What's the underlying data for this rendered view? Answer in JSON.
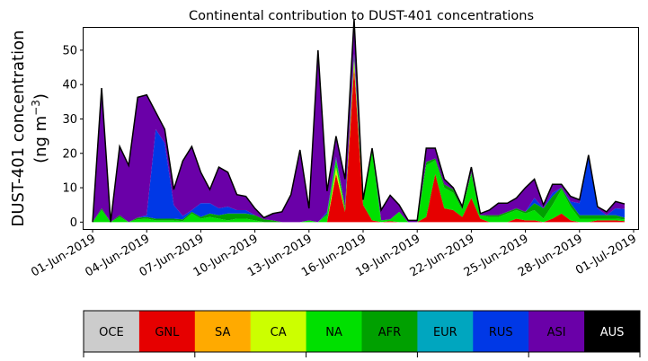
{
  "chart_data": {
    "type": "area",
    "title": "Continental contribution to DUST-401 concentrations",
    "ylabel_line1": "DUST-401 concentration",
    "ylabel_line2_prefix": "(ng m",
    "ylabel_line2_sup": "−3",
    "ylabel_line2_suffix": ")",
    "xlabel": "",
    "stacked": true,
    "ylim": [
      -2,
      56.5
    ],
    "yticks": [
      0,
      10,
      20,
      30,
      40,
      50
    ],
    "xlim": [
      "2019-05-31T12:00",
      "2019-07-01T06:00"
    ],
    "xtick_dates": [
      "2019-06-01",
      "2019-06-04",
      "2019-06-07",
      "2019-06-10",
      "2019-06-13",
      "2019-06-16",
      "2019-06-19",
      "2019-06-22",
      "2019-06-25",
      "2019-06-28",
      "2019-07-01"
    ],
    "xtick_labels": [
      "01-Jun-2019",
      "04-Jun-2019",
      "07-Jun-2019",
      "10-Jun-2019",
      "13-Jun-2019",
      "16-Jun-2019",
      "19-Jun-2019",
      "22-Jun-2019",
      "25-Jun-2019",
      "28-Jun-2019",
      "01-Jul-2019"
    ],
    "x": [
      "2019-06-01T00:00",
      "2019-06-01T12:00",
      "2019-06-02T00:00",
      "2019-06-02T12:00",
      "2019-06-03T00:00",
      "2019-06-03T12:00",
      "2019-06-04T00:00",
      "2019-06-04T12:00",
      "2019-06-05T00:00",
      "2019-06-05T12:00",
      "2019-06-06T00:00",
      "2019-06-06T12:00",
      "2019-06-07T00:00",
      "2019-06-07T12:00",
      "2019-06-08T00:00",
      "2019-06-08T12:00",
      "2019-06-09T00:00",
      "2019-06-09T12:00",
      "2019-06-10T00:00",
      "2019-06-10T12:00",
      "2019-06-11T00:00",
      "2019-06-11T12:00",
      "2019-06-12T00:00",
      "2019-06-12T12:00",
      "2019-06-13T00:00",
      "2019-06-13T12:00",
      "2019-06-14T00:00",
      "2019-06-14T12:00",
      "2019-06-15T00:00",
      "2019-06-15T12:00",
      "2019-06-16T00:00",
      "2019-06-16T12:00",
      "2019-06-17T00:00",
      "2019-06-17T12:00",
      "2019-06-18T00:00",
      "2019-06-18T12:00",
      "2019-06-19T00:00",
      "2019-06-19T12:00",
      "2019-06-20T00:00",
      "2019-06-20T12:00",
      "2019-06-21T00:00",
      "2019-06-21T12:00",
      "2019-06-22T00:00",
      "2019-06-22T12:00",
      "2019-06-23T00:00",
      "2019-06-23T12:00",
      "2019-06-24T00:00",
      "2019-06-24T12:00",
      "2019-06-25T00:00",
      "2019-06-25T12:00",
      "2019-06-26T00:00",
      "2019-06-26T12:00",
      "2019-06-27T00:00",
      "2019-06-27T12:00",
      "2019-06-28T00:00",
      "2019-06-28T12:00",
      "2019-06-29T00:00",
      "2019-06-29T12:00",
      "2019-06-30T00:00",
      "2019-06-30T12:00"
    ],
    "series": [
      {
        "name": "OCE",
        "color": "#cccccc",
        "values": [
          0,
          0,
          0,
          0,
          0,
          0,
          0,
          0,
          0,
          0,
          0,
          0,
          0,
          0,
          0,
          0,
          0,
          0,
          0,
          0,
          0,
          0,
          0,
          0,
          0,
          0,
          0,
          0,
          0,
          0,
          0,
          0,
          0,
          0,
          0,
          0,
          0,
          0,
          0,
          0,
          0,
          0,
          0,
          0,
          0,
          0,
          0,
          0,
          0,
          0,
          0,
          0,
          0,
          0,
          0,
          0,
          0,
          0,
          0,
          0
        ]
      },
      {
        "name": "GNL",
        "color": "#e60000",
        "values": [
          0,
          0,
          0,
          0,
          0,
          0,
          0,
          0,
          0,
          0,
          0,
          0,
          0,
          0,
          0,
          0,
          0,
          0,
          0,
          0,
          0,
          0,
          0,
          0,
          0,
          0,
          0,
          14,
          3,
          45,
          5,
          0.5,
          0,
          0.3,
          0,
          0,
          0,
          1.5,
          14,
          4,
          3.5,
          1.5,
          7,
          1,
          0,
          0,
          0,
          1,
          0.5,
          0.5,
          0,
          1,
          2.5,
          0.5,
          0,
          0,
          0.5,
          0.5,
          0.5,
          0.3
        ]
      },
      {
        "name": "SA",
        "color": "#ffaa00",
        "values": [
          0,
          0,
          0,
          0,
          0,
          0,
          0,
          0,
          0,
          0,
          0,
          0,
          0,
          0,
          0,
          0,
          0,
          0,
          0,
          0,
          0,
          0,
          0,
          0,
          0,
          0,
          0,
          0,
          0,
          0,
          0,
          0,
          0,
          0,
          0,
          0,
          0,
          0,
          0,
          0,
          0,
          0,
          0,
          0,
          0,
          0,
          0,
          0,
          0,
          0,
          0,
          0,
          0,
          0,
          0,
          0,
          0,
          0,
          0,
          0
        ]
      },
      {
        "name": "CA",
        "color": "#ccff00",
        "values": [
          0,
          0,
          0,
          0,
          0,
          0,
          0,
          0,
          0,
          0,
          0,
          0,
          0,
          0,
          0,
          0,
          0,
          0,
          0,
          0,
          0,
          0,
          0,
          0,
          0,
          0,
          0,
          2,
          0,
          2,
          0,
          0,
          0,
          0,
          0,
          0,
          0,
          0,
          0,
          0,
          0,
          0,
          0,
          0,
          0,
          0,
          0,
          0,
          0,
          0,
          0,
          0,
          0,
          0,
          0,
          0,
          0,
          0,
          0,
          0
        ]
      },
      {
        "name": "NA",
        "color": "#00e000",
        "values": [
          0,
          3.5,
          0,
          1.5,
          0,
          0.8,
          1,
          0.5,
          0.5,
          0.5,
          0.3,
          2.5,
          1,
          1.5,
          1,
          0.5,
          1,
          1,
          0.5,
          0,
          0,
          0,
          0,
          0,
          0.5,
          0,
          2,
          2,
          1,
          1,
          1,
          20,
          0.5,
          0.5,
          3,
          0,
          0,
          15,
          4,
          6,
          5,
          2,
          7,
          1,
          1.5,
          1.5,
          2.5,
          2.5,
          2,
          3,
          1,
          4,
          7,
          4,
          1,
          1,
          0.5,
          0.5,
          0.5,
          0.5
        ]
      },
      {
        "name": "AFR",
        "color": "#00a000",
        "values": [
          0,
          0.5,
          0,
          0.5,
          0,
          0.5,
          0.5,
          0.5,
          0.5,
          0.5,
          0.5,
          0.5,
          0.5,
          1,
          1,
          2,
          1.5,
          1.5,
          1.5,
          0.8,
          0.5,
          0,
          0,
          0,
          0,
          0,
          0.5,
          0.5,
          0.5,
          0.5,
          0.5,
          0.5,
          0,
          0,
          0,
          0,
          0,
          1,
          0.5,
          1,
          1,
          0.5,
          0.5,
          0,
          0.5,
          0.5,
          0.5,
          0.5,
          0.5,
          2,
          3,
          2.5,
          0.5,
          1,
          1,
          1,
          1,
          1,
          1,
          0.5
        ]
      },
      {
        "name": "EUR",
        "color": "#00a6bf",
        "values": [
          0,
          0,
          0,
          0,
          0,
          0,
          0,
          0,
          0,
          0,
          0,
          0,
          0,
          0,
          0,
          0,
          0,
          0,
          0,
          0,
          0,
          0,
          0,
          0,
          0,
          0,
          0,
          0,
          0,
          0,
          0,
          0,
          0,
          0,
          0,
          0,
          0,
          0,
          0,
          0,
          0,
          0,
          0,
          0,
          0,
          0,
          0,
          0,
          0,
          0,
          0,
          0,
          0,
          0,
          0,
          0,
          0,
          0,
          0,
          0
        ]
      },
      {
        "name": "RUS",
        "color": "#0038e6",
        "values": [
          0,
          0,
          0,
          0,
          0,
          0,
          0.5,
          26,
          22,
          4,
          1,
          0.5,
          4,
          3,
          2,
          2,
          1,
          1,
          0,
          0,
          0,
          0,
          0,
          0,
          0,
          0,
          0.5,
          0.5,
          0,
          0.5,
          0,
          0.5,
          0,
          0,
          0,
          0,
          0,
          0,
          0,
          0,
          0,
          0,
          0,
          0,
          0,
          0,
          0,
          0,
          0,
          1.5,
          0,
          1,
          0,
          0.5,
          3.5,
          17,
          2,
          0,
          2,
          2.5
        ]
      },
      {
        "name": "ASI",
        "color": "#6a00a8",
        "values": [
          0,
          35,
          0,
          20,
          16.5,
          35,
          35,
          5,
          4,
          4.5,
          16,
          18.5,
          9,
          4,
          12,
          10,
          4.5,
          4,
          2,
          0.5,
          2,
          3,
          8,
          21,
          3.5,
          50,
          6,
          6,
          8,
          10,
          0,
          0,
          3,
          7,
          2,
          0.5,
          0.5,
          4,
          3,
          1.5,
          0.5,
          0.5,
          1.5,
          0.5,
          1.5,
          3.5,
          2.5,
          3,
          7,
          5.5,
          1,
          2.5,
          1,
          1.5,
          1,
          0.5,
          0.5,
          1,
          2,
          1.5
        ]
      },
      {
        "name": "AUS",
        "color": "#000000",
        "values": [
          0,
          0,
          0,
          0,
          0,
          0,
          0,
          0,
          0,
          0,
          0,
          0,
          0,
          0,
          0,
          0,
          0,
          0,
          0,
          0,
          0,
          0,
          0,
          0,
          0,
          0,
          0,
          0,
          0,
          0,
          0,
          0,
          0,
          0,
          0,
          0,
          0,
          0,
          0,
          0,
          0,
          0,
          0,
          0,
          0,
          0,
          0,
          0,
          0,
          0,
          0,
          0,
          0,
          0,
          0,
          0,
          0,
          0,
          0,
          0
        ]
      }
    ],
    "legend": {
      "placement": "bottom colorbar",
      "labels": [
        "OCE",
        "GNL",
        "SA",
        "CA",
        "NA",
        "AFR",
        "EUR",
        "RUS",
        "ASI",
        "AUS"
      ],
      "colors": [
        "#cccccc",
        "#e60000",
        "#ffaa00",
        "#ccff00",
        "#00e000",
        "#00a000",
        "#00a6bf",
        "#0038e6",
        "#6a00a8",
        "#000000"
      ],
      "text_colors": [
        "#000000",
        "#000000",
        "#000000",
        "#000000",
        "#000000",
        "#000000",
        "#000000",
        "#000000",
        "#000000",
        "#ffffff"
      ]
    }
  }
}
